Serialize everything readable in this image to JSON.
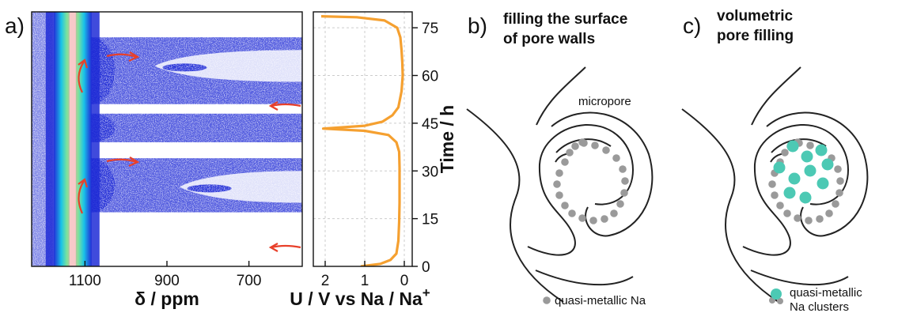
{
  "panels": {
    "a": {
      "letter": "a)"
    },
    "b": {
      "letter": "b)",
      "heading_line1": "filling the surface",
      "heading_line2": "of pore walls",
      "pore_label": "micropore",
      "legend_label": "quasi-metallic Na"
    },
    "c": {
      "letter": "c)",
      "heading_line1": "volumetric",
      "heading_line2": "pore filling",
      "legend_label_line1": "quasi-metallic",
      "legend_label_line2": "Na clusters"
    }
  },
  "colors": {
    "nmr_signal": "#1f2bd6",
    "potential_curve": "#f5a030",
    "arrows": "#e8402a",
    "na_atom": "#9a9a9a",
    "na_cluster": "#4cc9b4",
    "pore_wall": "#222222"
  },
  "chart_data": [
    {
      "type": "heatmap",
      "xlabel": "δ / ppm",
      "ylabel": "",
      "x_ticks": [
        1100,
        900,
        700
      ],
      "x_tick_labels": [
        "1100",
        "900",
        "700"
      ],
      "xlim": [
        1230,
        570
      ],
      "ylim": [
        0,
        80
      ],
      "description_series": [
        {
          "name": "",
          "feature": "metal ridge",
          "x_center": 1130,
          "y_range": [
            0,
            80
          ]
        },
        {
          "name": "",
          "feature": "signal band",
          "y_ranges": [
            [
              17,
              34
            ],
            [
              39,
              48
            ],
            [
              51,
              72
            ]
          ]
        },
        {
          "name": "",
          "feature": "high-shift lobe",
          "x_range": [
            870,
            570
          ],
          "y_range": [
            20,
            30
          ]
        },
        {
          "name": "",
          "feature": "high-shift lobe",
          "x_range": [
            930,
            570
          ],
          "y_range": [
            58,
            68
          ]
        }
      ]
    },
    {
      "type": "line",
      "xlabel": "U / V vs Na / Na",
      "xlabel_superscript": "+",
      "ylabel": "Time / h",
      "x_ticks": [
        2,
        1,
        0
      ],
      "x_tick_labels": [
        "2",
        "1",
        "0"
      ],
      "y_ticks": [
        0,
        15,
        30,
        45,
        60,
        75
      ],
      "y_tick_labels": [
        "0",
        "15",
        "30",
        "45",
        "60",
        "75"
      ],
      "xlim": [
        2.3,
        -0.2
      ],
      "ylim": [
        0,
        80
      ],
      "grid": true,
      "series": [
        {
          "name": "",
          "points": [
            [
              1.1,
              0
            ],
            [
              0.6,
              0.8
            ],
            [
              0.35,
              2
            ],
            [
              0.2,
              4
            ],
            [
              0.15,
              8
            ],
            [
              0.13,
              14
            ],
            [
              0.12,
              20
            ],
            [
              0.12,
              26
            ],
            [
              0.12,
              31
            ],
            [
              0.13,
              36
            ],
            [
              0.2,
              39
            ],
            [
              0.4,
              41.3
            ],
            [
              1.0,
              42.6
            ],
            [
              2.05,
              43.3
            ],
            [
              1.0,
              44.2
            ],
            [
              0.55,
              45.5
            ],
            [
              0.3,
              47.5
            ],
            [
              0.15,
              50
            ],
            [
              0.07,
              55
            ],
            [
              0.04,
              60
            ],
            [
              0.05,
              64
            ],
            [
              0.07,
              68
            ],
            [
              0.1,
              72
            ],
            [
              0.18,
              75
            ],
            [
              0.5,
              77.3
            ],
            [
              1.2,
              78.3
            ],
            [
              2.1,
              78.6
            ]
          ]
        }
      ]
    }
  ]
}
